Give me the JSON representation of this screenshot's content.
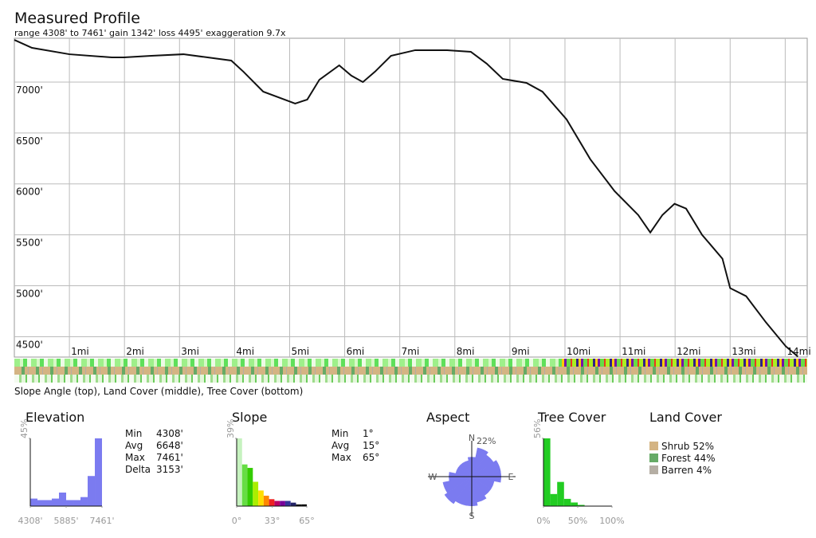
{
  "chart_data": [
    {
      "type": "line",
      "title": "Measured Profile",
      "subtitle": "range 4308' to 7461'  gain 1342'  loss 4495'  exaggeration 9.7x",
      "caption": "Slope Angle (top), Land Cover (middle), Tree Cover (bottom)",
      "x": [
        0,
        0.32,
        1.0,
        1.77,
        1.99,
        2.49,
        3.07,
        3.51,
        3.94,
        4.16,
        4.52,
        5.1,
        5.32,
        5.54,
        5.9,
        6.12,
        6.33,
        6.55,
        6.84,
        7.28,
        7.86,
        8.29,
        8.58,
        8.87,
        9.3,
        9.59,
        10.03,
        10.46,
        10.9,
        11.33,
        11.55,
        11.77,
        11.99,
        12.2,
        12.49,
        12.86,
        13.0,
        13.29,
        13.65,
        14.01,
        14.23
      ],
      "series": [
        {
          "color": "#111111",
          "values": [
            7414,
            7336,
            7273,
            7242,
            7242,
            7258,
            7273,
            7242,
            7211,
            7102,
            6906,
            6789,
            6828,
            7023,
            7164,
            7063,
            7000,
            7102,
            7258,
            7313,
            7313,
            7297,
            7180,
            7031,
            6992,
            6906,
            6633,
            6242,
            5930,
            5695,
            5523,
            5695,
            5805,
            5758,
            5500,
            5266,
            4977,
            4898,
            4641,
            4406,
            4305
          ]
        }
      ],
      "xlim": [
        0,
        14.4
      ],
      "xticks": [
        {
          "value": 1,
          "label": "1mi"
        },
        {
          "value": 2,
          "label": "2mi"
        },
        {
          "value": 3,
          "label": "3mi"
        },
        {
          "value": 4,
          "label": "4mi"
        },
        {
          "value": 5,
          "label": "5mi"
        },
        {
          "value": 6,
          "label": "6mi"
        },
        {
          "value": 7,
          "label": "7mi"
        },
        {
          "value": 8,
          "label": "8mi"
        },
        {
          "value": 9,
          "label": "9mi"
        },
        {
          "value": 10,
          "label": "10mi"
        },
        {
          "value": 11,
          "label": "11mi"
        },
        {
          "value": 12,
          "label": "12mi"
        },
        {
          "value": 13,
          "label": "13mi"
        },
        {
          "value": 14,
          "label": "14mi"
        }
      ],
      "ylim": [
        4300,
        7430
      ],
      "yticks": [
        {
          "value": 4500,
          "label": "4500'"
        },
        {
          "value": 5000,
          "label": "5000'"
        },
        {
          "value": 5500,
          "label": "5500'"
        },
        {
          "value": 6000,
          "label": "6000'"
        },
        {
          "value": 6500,
          "label": "6500'"
        },
        {
          "value": 7000,
          "label": "7000'"
        }
      ],
      "grid": true
    },
    {
      "type": "histogram",
      "title": "Elevation",
      "color": "#7b7bf0",
      "bins": [
        4308,
        4623,
        4939,
        5254,
        5569,
        5885,
        6200,
        6515,
        6830,
        7146,
        7461
      ],
      "values": [
        5,
        4,
        4,
        5,
        9,
        4,
        4,
        6,
        20,
        45
      ],
      "xlim": [
        4308,
        7461
      ],
      "xticks": [
        {
          "value": 4308,
          "label": "4308'"
        },
        {
          "value": 5885,
          "label": "5885'"
        },
        {
          "value": 7461,
          "label": "7461'"
        }
      ],
      "ylim": [
        0,
        45
      ],
      "yticks": [
        {
          "value": 45,
          "label": "45%"
        }
      ],
      "stats": [
        [
          "Min",
          "4308'"
        ],
        [
          "Avg",
          "6648'"
        ],
        [
          "Max",
          "7461'"
        ],
        [
          "Delta",
          "3153'"
        ]
      ]
    },
    {
      "type": "histogram",
      "title": "Slope",
      "bins": [
        0,
        5,
        10,
        15,
        20,
        25,
        30,
        35,
        40,
        45,
        50,
        55,
        60,
        65
      ],
      "values": [
        39,
        24,
        22,
        14,
        9,
        6,
        4,
        3,
        3,
        3,
        2,
        1,
        1
      ],
      "colors": [
        "#c6f2bf",
        "#66dd44",
        "#33cc00",
        "#aaee00",
        "#ffdd00",
        "#ff8800",
        "#ee2222",
        "#bb0066",
        "#770099",
        "#333399",
        "#222266",
        "#111111",
        "#000000"
      ],
      "xlim": [
        0,
        65
      ],
      "xticks": [
        {
          "value": 0,
          "label": "0°"
        },
        {
          "value": 33,
          "label": "33°"
        },
        {
          "value": 65,
          "label": "65°"
        }
      ],
      "ylim": [
        0,
        39
      ],
      "yticks": [
        {
          "value": 39,
          "label": "39%"
        }
      ],
      "stats": [
        [
          "Min",
          "1°"
        ],
        [
          "Avg",
          "15°"
        ],
        [
          "Max",
          "65°"
        ]
      ]
    },
    {
      "type": "rose",
      "title": "Aspect",
      "color": "#7b7bf0",
      "categories": [
        "N",
        null,
        null,
        null,
        "E",
        null,
        null,
        null,
        "S",
        null,
        null,
        null,
        "W",
        null,
        null,
        null
      ],
      "values": [
        12,
        18,
        16,
        18,
        18,
        14,
        14,
        16,
        18,
        18,
        20,
        18,
        14,
        10,
        10,
        10
      ],
      "rlim": [
        0,
        22
      ],
      "rticks": [
        {
          "value": 22,
          "label": "22%"
        }
      ]
    },
    {
      "type": "histogram",
      "title": "Tree Cover",
      "color": "#22cc22",
      "bins": [
        0,
        10,
        20,
        30,
        40,
        50,
        60,
        70,
        80,
        90,
        100
      ],
      "values": [
        56,
        10,
        20,
        6,
        3,
        1,
        0,
        0,
        0,
        0
      ],
      "xlim": [
        0,
        100
      ],
      "xticks": [
        {
          "value": 0,
          "label": "0%"
        },
        {
          "value": 50,
          "label": "50%"
        },
        {
          "value": 100,
          "label": "100%"
        }
      ],
      "ylim": [
        0,
        56
      ],
      "yticks": [
        {
          "value": 56,
          "label": "56%"
        }
      ]
    },
    {
      "type": "legend",
      "title": "Land Cover",
      "categories": [
        "Shrub",
        "Forest",
        "Barren"
      ],
      "values": [
        52,
        44,
        4
      ],
      "value_labels": [
        "52%",
        "44%",
        "4%"
      ],
      "colors": [
        "#d4b483",
        "#66aa66",
        "#b5aea4"
      ]
    }
  ]
}
